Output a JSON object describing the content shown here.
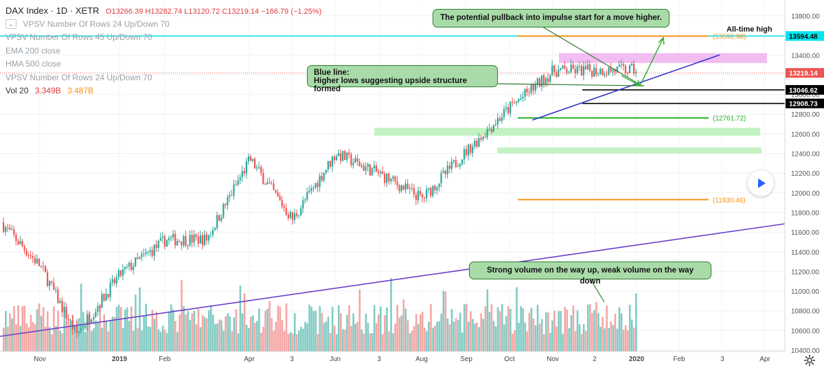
{
  "header": {
    "title": "DAX Index · 1D · XETR",
    "ohlc": "O13266.39  H13282.74  L13120.72  C13219.14  −166.79 (−1.25%)"
  },
  "indicators": [
    {
      "label": "VPSV Number Of Rows 24 Up/Down 70",
      "faded": false,
      "toggle": true
    },
    {
      "label": "VPSV Number Of Rows 45 Up/Down 70",
      "faded": true,
      "toggle": false
    },
    {
      "label": "EMA 200 close",
      "faded": true,
      "toggle": false
    },
    {
      "label": "HMA 500 close",
      "faded": true,
      "toggle": false
    },
    {
      "label": "VPSV Number Of Rows 24 Up/Down 70",
      "faded": true,
      "toggle": false
    }
  ],
  "volume": {
    "label": "Vol 20",
    "v1": "3.349B",
    "v2": "3.487B"
  },
  "annotations": {
    "pullback": "The potential pullback into impulse start for a move higher.",
    "blue_line_title": "Blue line:",
    "blue_line_text": "Higher lows suggesting upside structure formed",
    "volume": "Strong volume on the way up, weak volume on the way down",
    "all_time_high": "All-time high"
  },
  "colors": {
    "up": "#26a69a",
    "down": "#ef5350",
    "vol_up": "#80cbc4",
    "vol_down": "#f4a6a4",
    "cyan_line": "#00e5ee",
    "orange_level": "#f7931a",
    "green_level": "#22b022",
    "trend_blue": "#3333cc",
    "trend_purple": "#6a3fc9"
  },
  "chart_data": {
    "type": "candlestick",
    "yaxis": {
      "ticks": [
        "13800.00",
        "13600.00",
        "13400.00",
        "13200.00",
        "13000.00",
        "12800.00",
        "12600.00",
        "12400.00",
        "12200.00",
        "12000.00",
        "11800.00",
        "11600.00",
        "11400.00",
        "11200.00",
        "11000.00",
        "10800.00",
        "10600.00",
        "10400.00"
      ],
      "range": [
        10400,
        13800
      ]
    },
    "xaxis": {
      "labels": [
        "Nov",
        "2019",
        "Feb",
        "Apr",
        "3",
        "Jun",
        "3",
        "Aug",
        "Sep",
        "Oct",
        "Nov",
        "2",
        "2020",
        "Feb",
        "3",
        "Apr"
      ],
      "bold": [
        "2019",
        "2020"
      ]
    },
    "price_tags": [
      {
        "value": 13594.48,
        "text": "13594.48",
        "bg": "#00e5ee",
        "fg": "#000000"
      },
      {
        "value": 13219.14,
        "text": "13219.14",
        "bg": "#ef5350",
        "fg": "#ffffff"
      },
      {
        "value": 13046.62,
        "text": "13046.62",
        "bg": "#000000",
        "fg": "#ffffff"
      },
      {
        "value": 12908.73,
        "text": "12908.73",
        "bg": "#000000",
        "fg": "#ffffff"
      }
    ],
    "levels": [
      {
        "value": 13592.98,
        "label": "(13592.98)",
        "color": "orange"
      },
      {
        "value": 12761.72,
        "label": "(12761.72)",
        "color": "green"
      },
      {
        "value": 11930.46,
        "label": "(11930.46)",
        "color": "orange"
      }
    ],
    "zones": [
      {
        "from": 13320,
        "to": 13420,
        "color": "pink"
      },
      {
        "from": 12580,
        "to": 12660,
        "color": "green"
      },
      {
        "from": 12400,
        "to": 12460,
        "color": "green"
      }
    ],
    "last_close": 13219.14,
    "series": [
      {
        "month": "Oct 2018",
        "close": 11700
      },
      {
        "month": "Nov 2018",
        "close": 11250
      },
      {
        "month": "Dec 2018",
        "close": 10560
      },
      {
        "month": "Jan 2019",
        "close": 11170
      },
      {
        "month": "Feb 2019",
        "close": 11520
      },
      {
        "month": "Mar 2019",
        "close": 11530
      },
      {
        "month": "Apr 2019",
        "close": 12340
      },
      {
        "month": "May 2019",
        "close": 11730
      },
      {
        "month": "Jun 2019",
        "close": 12400
      },
      {
        "month": "Jul 2019",
        "close": 12190
      },
      {
        "month": "Aug 2019",
        "close": 11940
      },
      {
        "month": "Sep 2019",
        "close": 12430
      },
      {
        "month": "Oct 2019",
        "close": 12870
      },
      {
        "month": "Nov 2019",
        "close": 13240
      },
      {
        "month": "Dec 2019",
        "close": 13250
      }
    ]
  }
}
